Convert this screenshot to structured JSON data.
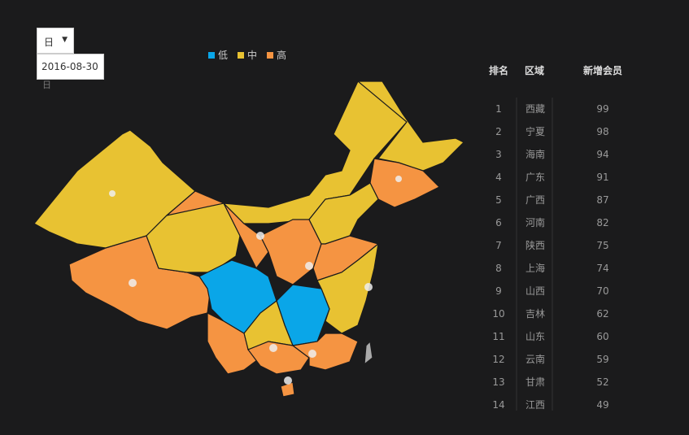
{
  "controls": {
    "period": "日",
    "date": "2016-08-30",
    "period_hint": "日"
  },
  "legend": [
    {
      "name": "低",
      "color": "#0aa6e8"
    },
    {
      "name": "中",
      "color": "#e8c232"
    },
    {
      "name": "高",
      "color": "#f59442"
    }
  ],
  "table": {
    "columns": [
      "排名",
      "区域",
      "新增会员"
    ],
    "rows": [
      [
        1,
        "西藏",
        99
      ],
      [
        2,
        "宁夏",
        98
      ],
      [
        3,
        "海南",
        94
      ],
      [
        4,
        "广东",
        91
      ],
      [
        5,
        "广西",
        87
      ],
      [
        6,
        "河南",
        82
      ],
      [
        7,
        "陕西",
        75
      ],
      [
        8,
        "上海",
        74
      ],
      [
        9,
        "山西",
        70
      ],
      [
        10,
        "吉林",
        62
      ],
      [
        11,
        "山东",
        60
      ],
      [
        12,
        "云南",
        59
      ],
      [
        13,
        "甘肃",
        52
      ],
      [
        14,
        "江西",
        49
      ]
    ]
  }
}
